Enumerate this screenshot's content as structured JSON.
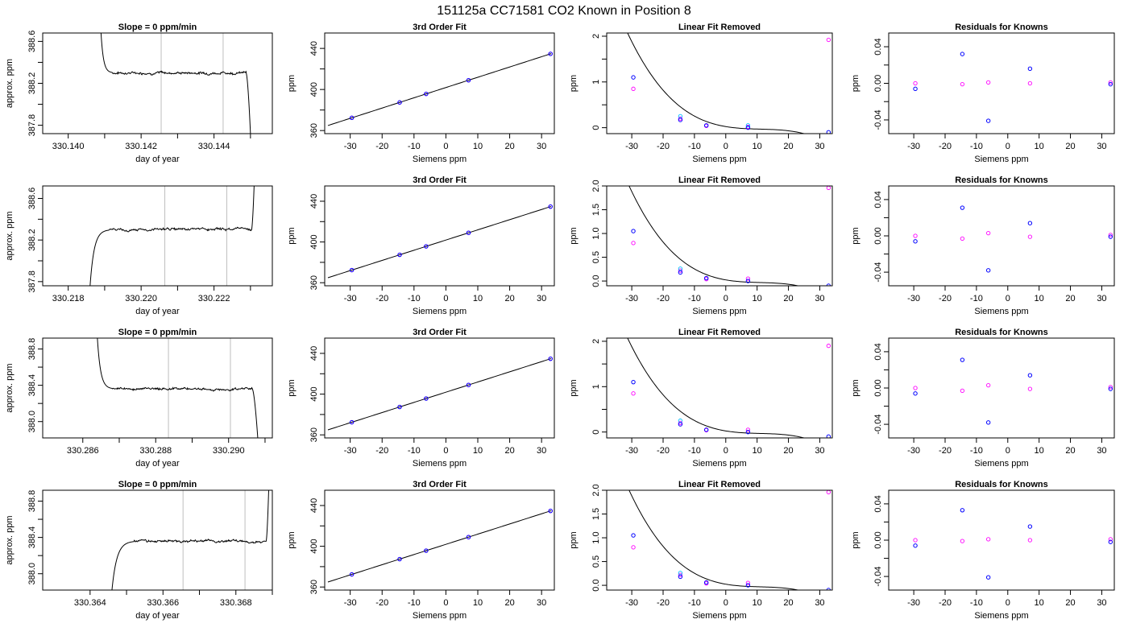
{
  "suptitle": "151125a     CC71581    CO2 Known in Position  8",
  "colors": {
    "measured": "#0000ff",
    "known": "#ff00ff",
    "cyan": "#00bfff",
    "curve": "#000000",
    "marker_line": "#bebebe"
  },
  "chart_data": [
    {
      "row": 0,
      "col": 0,
      "type": "line",
      "title": "Slope =  0  ppm/min",
      "xlabel": "day of year",
      "ylabel": "approx. ppm",
      "xlim": [
        330.1393,
        330.1456
      ],
      "ylim": [
        387.72,
        388.68
      ],
      "xticks": [
        330.14,
        330.142,
        330.144
      ],
      "xticklabels": [
        "330.140",
        "330.142",
        "330.144"
      ],
      "xminor": [
        330.141,
        330.143,
        330.145
      ],
      "yticks": [
        387.8,
        388.0,
        388.2,
        388.4,
        388.6
      ],
      "yticklabels": [
        "387.8",
        "388.2",
        "388.6"
      ],
      "vlines": [
        330.14255,
        330.14425
      ],
      "trace": {
        "x0": 330.1409,
        "x_plateau": 330.1412,
        "x_end": 330.14488,
        "x_drop": 330.145,
        "start": 388.68,
        "level": 388.3,
        "end": 387.72
      }
    },
    {
      "row": 0,
      "col": 1,
      "type": "scatter",
      "title": "3rd Order Fit",
      "xlabel": "Siemens ppm",
      "ylabel": "ppm",
      "xlim": [
        -38,
        34
      ],
      "ylim": [
        357,
        455
      ],
      "xticks": [
        -30,
        -20,
        -10,
        0,
        10,
        20,
        30
      ],
      "yticks": [
        360,
        400,
        440
      ],
      "yminor": [
        380,
        420
      ],
      "measured_x": [
        -29.5,
        -14.5,
        -6.2,
        7.1,
        32.8
      ],
      "known_y": [
        372.4,
        387.4,
        395.7,
        409.0,
        434.7
      ],
      "fit": {
        "a": 401.9,
        "b": 1,
        "c": 0,
        "d": 0
      }
    },
    {
      "row": 0,
      "col": 2,
      "type": "scatter",
      "title": "Linear Fit Removed",
      "xlabel": "Siemens ppm",
      "ylabel": "ppm",
      "xlim": [
        -38,
        34
      ],
      "ylim": [
        -0.13,
        2.07
      ],
      "xticks": [
        -30,
        -20,
        -10,
        0,
        10,
        20,
        30
      ],
      "yticks": [
        0.0,
        1.0,
        2.0
      ],
      "yminor": [
        0.5,
        1.5
      ],
      "measured_x": [
        -29.5,
        -14.5,
        -6.2,
        7.1,
        32.8
      ],
      "measured_y": [
        1.1,
        0.17,
        0.05,
        0.0,
        -0.1
      ],
      "known_y": [
        0.85,
        0.2,
        0.04,
        0.02,
        1.92
      ],
      "cyan_y": [
        null,
        0.25,
        null,
        0.05,
        null
      ],
      "fit": {
        "a": 0.024,
        "b": -0.0115,
        "c": 0.00088,
        "d": -2.67e-05
      }
    },
    {
      "row": 0,
      "col": 3,
      "type": "scatter",
      "title": "Residuals for Knowns",
      "xlabel": "Siemens ppm",
      "ylabel": "ppm",
      "xlim": [
        -38,
        34
      ],
      "ylim": [
        -0.055,
        0.055
      ],
      "xticks": [
        -30,
        -20,
        -10,
        0,
        10,
        20,
        30
      ],
      "yticks": [
        -0.04,
        0.0,
        0.04
      ],
      "yminor": [
        -0.02,
        0.02
      ],
      "measured_x": [
        -29.5,
        -14.5,
        -6.2,
        7.1,
        32.8
      ],
      "measured_y": [
        -0.006,
        0.032,
        -0.041,
        0.016,
        -0.001
      ],
      "known_y": [
        0.0,
        -0.001,
        0.001,
        0.0,
        0.001
      ]
    },
    {
      "row": 1,
      "col": 0,
      "type": "line",
      "title": "",
      "xlabel": "day of year",
      "ylabel": "approx. ppm",
      "xlim": [
        330.2173,
        330.2236
      ],
      "ylim": [
        387.76,
        388.72
      ],
      "xticks": [
        330.218,
        330.22,
        330.222
      ],
      "xticklabels": [
        "330.218",
        "330.220",
        "330.222"
      ],
      "xminor": [
        330.219,
        330.221,
        330.223
      ],
      "yticks": [
        387.8,
        388.0,
        388.2,
        388.4,
        388.6
      ],
      "yticklabels": [
        "387.8",
        "388.2",
        "388.6"
      ],
      "vlines": [
        330.22065,
        330.22235
      ],
      "trace": {
        "x0": 330.2186,
        "x_plateau": 330.2191,
        "x_end": 330.22303,
        "x_drop": 330.2231,
        "start": 387.76,
        "level": 388.3,
        "end": 388.72
      }
    },
    {
      "row": 1,
      "col": 1,
      "type": "scatter",
      "title": "3rd Order Fit",
      "xlabel": "Siemens ppm",
      "ylabel": "ppm",
      "xlim": [
        -38,
        34
      ],
      "ylim": [
        357,
        455
      ],
      "xticks": [
        -30,
        -20,
        -10,
        0,
        10,
        20,
        30
      ],
      "yticks": [
        360,
        400,
        440
      ],
      "yminor": [
        380,
        420
      ],
      "measured_x": [
        -29.5,
        -14.5,
        -6.2,
        7.1,
        32.8
      ],
      "known_y": [
        372.4,
        387.4,
        395.7,
        409.0,
        434.7
      ],
      "fit": {
        "a": 401.9,
        "b": 1,
        "c": 0,
        "d": 0
      }
    },
    {
      "row": 1,
      "col": 2,
      "type": "scatter",
      "title": "Linear Fit Removed",
      "xlabel": "Siemens ppm",
      "ylabel": "ppm",
      "xlim": [
        -38,
        34
      ],
      "ylim": [
        -0.1,
        2.0
      ],
      "xticks": [
        -30,
        -20,
        -10,
        0,
        10,
        20,
        30
      ],
      "yticks": [
        0.0,
        0.5,
        1.0,
        1.5,
        2.0
      ],
      "measured_x": [
        -29.5,
        -14.5,
        -6.2,
        7.1,
        32.8
      ],
      "measured_y": [
        1.05,
        0.18,
        0.06,
        0.0,
        -0.1
      ],
      "known_y": [
        0.8,
        0.22,
        0.04,
        0.05,
        1.96
      ],
      "cyan_y": [
        null,
        0.26,
        null,
        null,
        null
      ],
      "fit": {
        "a": 0.024,
        "b": -0.0115,
        "c": 0.00088,
        "d": -2.67e-05
      }
    },
    {
      "row": 1,
      "col": 3,
      "type": "scatter",
      "title": "Residuals for Knowns",
      "xlabel": "Siemens ppm",
      "ylabel": "ppm",
      "xlim": [
        -38,
        34
      ],
      "ylim": [
        -0.055,
        0.055
      ],
      "xticks": [
        -30,
        -20,
        -10,
        0,
        10,
        20,
        30
      ],
      "yticks": [
        -0.04,
        0.0,
        0.04
      ],
      "yminor": [
        -0.02,
        0.02
      ],
      "measured_x": [
        -29.5,
        -14.5,
        -6.2,
        7.1,
        32.8
      ],
      "measured_y": [
        -0.006,
        0.031,
        -0.038,
        0.014,
        -0.001
      ],
      "known_y": [
        0.0,
        -0.003,
        0.003,
        -0.001,
        0.001
      ]
    },
    {
      "row": 2,
      "col": 0,
      "type": "line",
      "title": "Slope =  0  ppm/min",
      "xlabel": "day of year",
      "ylabel": "approx. ppm",
      "xlim": [
        330.2849,
        330.2912
      ],
      "ylim": [
        387.82,
        388.92
      ],
      "xticks": [
        330.286,
        330.288,
        330.29
      ],
      "xticklabels": [
        "330.286",
        "330.288",
        "330.290"
      ],
      "xminor": [
        330.287,
        330.289,
        330.291
      ],
      "yticks": [
        388.0,
        388.2,
        388.4,
        388.6,
        388.8
      ],
      "yticklabels": [
        "388.0",
        "388.4",
        "388.8"
      ],
      "vlines": [
        330.28835,
        330.29005
      ],
      "trace": {
        "x0": 330.2864,
        "x_plateau": 330.2868,
        "x_end": 330.29065,
        "x_drop": 330.2908,
        "start": 388.92,
        "level": 388.36,
        "end": 387.82
      }
    },
    {
      "row": 2,
      "col": 1,
      "type": "scatter",
      "title": "3rd Order Fit",
      "xlabel": "Siemens ppm",
      "ylabel": "ppm",
      "xlim": [
        -38,
        34
      ],
      "ylim": [
        357,
        455
      ],
      "xticks": [
        -30,
        -20,
        -10,
        0,
        10,
        20,
        30
      ],
      "yticks": [
        360,
        400,
        440
      ],
      "yminor": [
        380,
        420
      ],
      "measured_x": [
        -29.5,
        -14.5,
        -6.2,
        7.1,
        32.8
      ],
      "known_y": [
        372.4,
        387.4,
        395.7,
        409.0,
        434.7
      ],
      "fit": {
        "a": 401.9,
        "b": 1,
        "c": 0,
        "d": 0
      }
    },
    {
      "row": 2,
      "col": 2,
      "type": "scatter",
      "title": "Linear Fit Removed",
      "xlabel": "Siemens ppm",
      "ylabel": "ppm",
      "xlim": [
        -38,
        34
      ],
      "ylim": [
        -0.13,
        2.07
      ],
      "xticks": [
        -30,
        -20,
        -10,
        0,
        10,
        20,
        30
      ],
      "yticks": [
        0.0,
        1.0,
        2.0
      ],
      "yminor": [
        0.5,
        1.5
      ],
      "measured_x": [
        -29.5,
        -14.5,
        -6.2,
        7.1,
        32.8
      ],
      "measured_y": [
        1.1,
        0.17,
        0.05,
        0.0,
        -0.1
      ],
      "known_y": [
        0.85,
        0.2,
        0.04,
        0.05,
        1.9
      ],
      "cyan_y": [
        null,
        0.25,
        null,
        null,
        null
      ],
      "fit": {
        "a": 0.024,
        "b": -0.0115,
        "c": 0.00088,
        "d": -2.67e-05
      }
    },
    {
      "row": 2,
      "col": 3,
      "type": "scatter",
      "title": "Residuals for Knowns",
      "xlabel": "Siemens ppm",
      "ylabel": "ppm",
      "xlim": [
        -38,
        34
      ],
      "ylim": [
        -0.055,
        0.055
      ],
      "xticks": [
        -30,
        -20,
        -10,
        0,
        10,
        20,
        30
      ],
      "yticks": [
        -0.04,
        0.0,
        0.04
      ],
      "yminor": [
        -0.02,
        0.02
      ],
      "measured_x": [
        -29.5,
        -14.5,
        -6.2,
        7.1,
        32.8
      ],
      "measured_y": [
        -0.006,
        0.031,
        -0.038,
        0.014,
        -0.001
      ],
      "known_y": [
        0.0,
        -0.003,
        0.003,
        -0.001,
        0.001
      ]
    },
    {
      "row": 3,
      "col": 0,
      "type": "line",
      "title": "Slope =  0  ppm/min",
      "xlabel": "day of year",
      "ylabel": "approx. ppm",
      "xlim": [
        330.3627,
        330.369
      ],
      "ylim": [
        387.82,
        388.92
      ],
      "xticks": [
        330.364,
        330.366,
        330.368
      ],
      "xticklabels": [
        "330.364",
        "330.366",
        "330.368"
      ],
      "xminor": [
        330.365,
        330.367,
        330.369
      ],
      "yticks": [
        388.0,
        388.2,
        388.4,
        388.6,
        388.8
      ],
      "yticklabels": [
        "388.0",
        "388.4",
        "388.8"
      ],
      "vlines": [
        330.36655,
        330.36825
      ],
      "trace": {
        "x0": 330.3646,
        "x_plateau": 330.3652,
        "x_end": 330.36883,
        "x_drop": 330.3689,
        "start": 387.82,
        "level": 388.36,
        "end": 388.92
      }
    },
    {
      "row": 3,
      "col": 1,
      "type": "scatter",
      "title": "3rd Order Fit",
      "xlabel": "Siemens ppm",
      "ylabel": "ppm",
      "xlim": [
        -38,
        34
      ],
      "ylim": [
        357,
        455
      ],
      "xticks": [
        -30,
        -20,
        -10,
        0,
        10,
        20,
        30
      ],
      "yticks": [
        360,
        400,
        440
      ],
      "yminor": [
        380,
        420
      ],
      "measured_x": [
        -29.5,
        -14.5,
        -6.2,
        7.1,
        32.8
      ],
      "known_y": [
        372.4,
        387.4,
        395.7,
        409.0,
        434.7
      ],
      "fit": {
        "a": 401.9,
        "b": 1,
        "c": 0,
        "d": 0
      }
    },
    {
      "row": 3,
      "col": 2,
      "type": "scatter",
      "title": "Linear Fit Removed",
      "xlabel": "Siemens ppm",
      "ylabel": "ppm",
      "xlim": [
        -38,
        34
      ],
      "ylim": [
        -0.1,
        2.0
      ],
      "xticks": [
        -30,
        -20,
        -10,
        0,
        10,
        20,
        30
      ],
      "yticks": [
        0.0,
        0.5,
        1.0,
        1.5,
        2.0
      ],
      "measured_x": [
        -29.5,
        -14.5,
        -6.2,
        7.1,
        32.8
      ],
      "measured_y": [
        1.05,
        0.18,
        0.06,
        0.0,
        -0.1
      ],
      "known_y": [
        0.8,
        0.22,
        0.04,
        0.05,
        1.96
      ],
      "cyan_y": [
        null,
        0.26,
        null,
        null,
        null
      ],
      "fit": {
        "a": 0.024,
        "b": -0.0115,
        "c": 0.00088,
        "d": -2.67e-05
      }
    },
    {
      "row": 3,
      "col": 3,
      "type": "scatter",
      "title": "Residuals for Knowns",
      "xlabel": "Siemens ppm",
      "ylabel": "ppm",
      "xlim": [
        -38,
        34
      ],
      "ylim": [
        -0.055,
        0.055
      ],
      "xticks": [
        -30,
        -20,
        -10,
        0,
        10,
        20,
        30
      ],
      "yticks": [
        -0.04,
        0.0,
        0.04
      ],
      "yminor": [
        -0.02,
        0.02
      ],
      "measured_x": [
        -29.5,
        -14.5,
        -6.2,
        7.1,
        32.8
      ],
      "measured_y": [
        -0.006,
        0.033,
        -0.041,
        0.015,
        -0.002
      ],
      "known_y": [
        0.0,
        -0.001,
        0.001,
        0.0,
        0.001
      ]
    }
  ]
}
